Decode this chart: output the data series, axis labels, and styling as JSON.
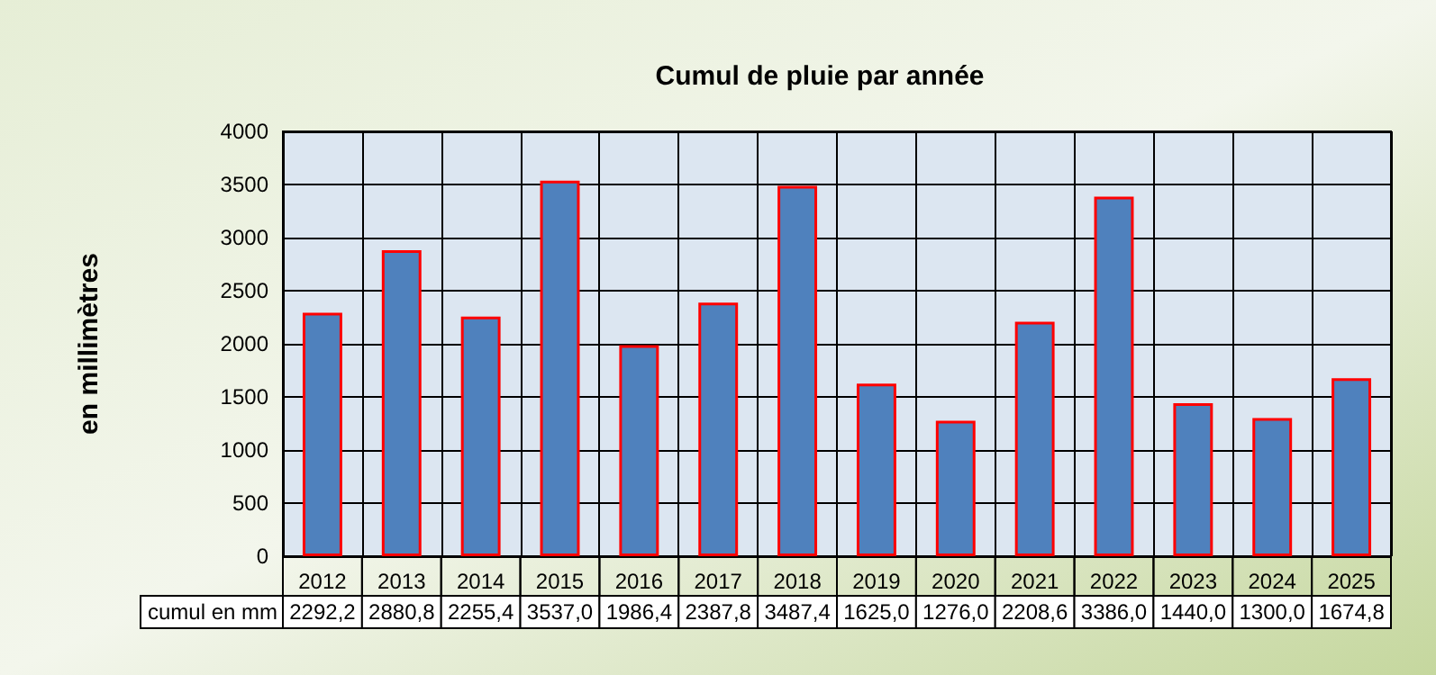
{
  "chart_data": {
    "type": "bar",
    "title": "Cumul de pluie par année",
    "ylabel": "en millimètres",
    "categories": [
      "2012",
      "2013",
      "2014",
      "2015",
      "2016",
      "2017",
      "2018",
      "2019",
      "2020",
      "2021",
      "2022",
      "2023",
      "2024",
      "2025"
    ],
    "series": [
      {
        "name": "cumul en mm",
        "color": "#4f81bd",
        "values": [
          2292.2,
          2880.8,
          2255.4,
          3537.0,
          1986.4,
          2387.8,
          3487.4,
          1625.0,
          1276.0,
          2208.6,
          3386.0,
          1440.0,
          1300.0,
          1674.8
        ],
        "value_labels": [
          "2292,2",
          "2880,8",
          "2255,4",
          "3537,0",
          "1986,4",
          "2387,8",
          "3487,4",
          "1625,0",
          "1276,0",
          "2208,6",
          "3386,0",
          "1440,0",
          "1300,0",
          "1674,8"
        ]
      }
    ],
    "ylim": [
      0,
      4000
    ],
    "yticks": [
      0,
      500,
      1000,
      1500,
      2000,
      2500,
      3000,
      3500,
      4000
    ],
    "grid": true,
    "legend": false
  }
}
